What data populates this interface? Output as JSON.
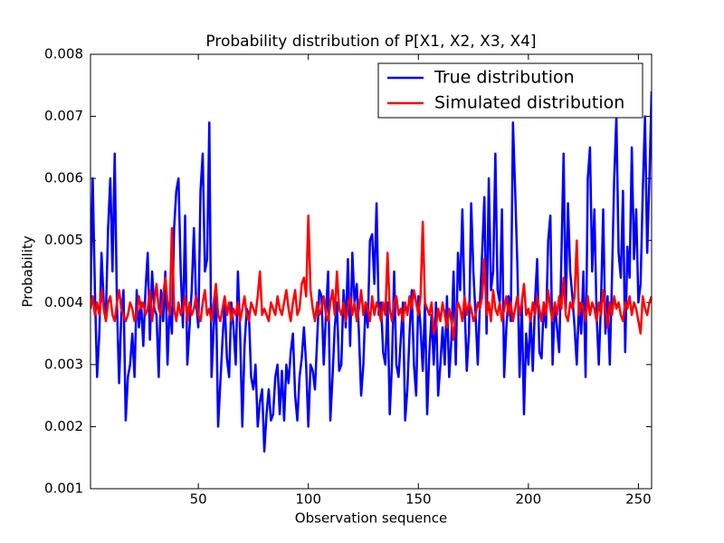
{
  "chart_data": {
    "type": "line",
    "title": "Probability distribution of P[X1, X2, X3, X4]",
    "xlabel": "Observation sequence",
    "ylabel": "Probability",
    "xlim": [
      1,
      256
    ],
    "xticks": [
      50,
      100,
      150,
      200,
      250
    ],
    "ylim": [
      0.001,
      0.008
    ],
    "yticks": [
      0.001,
      0.002,
      0.003,
      0.004,
      0.005,
      0.006,
      0.007,
      0.008
    ],
    "legend": "upper right",
    "x": [
      1,
      2,
      3,
      4,
      5,
      6,
      7,
      8,
      9,
      10,
      11,
      12,
      13,
      14,
      15,
      16,
      17,
      18,
      19,
      20,
      21,
      22,
      23,
      24,
      25,
      26,
      27,
      28,
      29,
      30,
      31,
      32,
      33,
      34,
      35,
      36,
      37,
      38,
      39,
      40,
      41,
      42,
      43,
      44,
      45,
      46,
      47,
      48,
      49,
      50,
      51,
      52,
      53,
      54,
      55,
      56,
      57,
      58,
      59,
      60,
      61,
      62,
      63,
      64,
      65,
      66,
      67,
      68,
      69,
      70,
      71,
      72,
      73,
      74,
      75,
      76,
      77,
      78,
      79,
      80,
      81,
      82,
      83,
      84,
      85,
      86,
      87,
      88,
      89,
      90,
      91,
      92,
      93,
      94,
      95,
      96,
      97,
      98,
      99,
      100,
      101,
      102,
      103,
      104,
      105,
      106,
      107,
      108,
      109,
      110,
      111,
      112,
      113,
      114,
      115,
      116,
      117,
      118,
      119,
      120,
      121,
      122,
      123,
      124,
      125,
      126,
      127,
      128,
      129,
      130,
      131,
      132,
      133,
      134,
      135,
      136,
      137,
      138,
      139,
      140,
      141,
      142,
      143,
      144,
      145,
      146,
      147,
      148,
      149,
      150,
      151,
      152,
      153,
      154,
      155,
      156,
      157,
      158,
      159,
      160,
      161,
      162,
      163,
      164,
      165,
      166,
      167,
      168,
      169,
      170,
      171,
      172,
      173,
      174,
      175,
      176,
      177,
      178,
      179,
      180,
      181,
      182,
      183,
      184,
      185,
      186,
      187,
      188,
      189,
      190,
      191,
      192,
      193,
      194,
      195,
      196,
      197,
      198,
      199,
      200,
      201,
      202,
      203,
      204,
      205,
      206,
      207,
      208,
      209,
      210,
      211,
      212,
      213,
      214,
      215,
      216,
      217,
      218,
      219,
      220,
      221,
      222,
      223,
      224,
      225,
      226,
      227,
      228,
      229,
      230,
      231,
      232,
      233,
      234,
      235,
      236,
      237,
      238,
      239,
      240,
      241,
      242,
      243,
      244,
      245,
      246,
      247,
      248,
      249,
      250,
      251,
      252,
      253,
      254,
      255,
      256
    ],
    "series": [
      {
        "name": "True distribution",
        "color": "#0000ff",
        "values": [
          0.004,
          0.006,
          0.0042,
          0.0028,
          0.0035,
          0.0048,
          0.004,
          0.0038,
          0.0052,
          0.006,
          0.0045,
          0.0064,
          0.004,
          0.0027,
          0.0038,
          0.0042,
          0.0021,
          0.0028,
          0.003,
          0.0035,
          0.0028,
          0.0042,
          0.0036,
          0.004,
          0.0033,
          0.0042,
          0.0048,
          0.0034,
          0.0045,
          0.0039,
          0.0038,
          0.0028,
          0.0042,
          0.0037,
          0.0045,
          0.003,
          0.004,
          0.0035,
          0.0052,
          0.0058,
          0.006,
          0.0045,
          0.0036,
          0.0054,
          0.003,
          0.0036,
          0.0042,
          0.0052,
          0.004,
          0.0036,
          0.0058,
          0.0064,
          0.0045,
          0.0047,
          0.0069,
          0.0028,
          0.0036,
          0.0042,
          0.002,
          0.0027,
          0.0034,
          0.004,
          0.0031,
          0.0028,
          0.004,
          0.0036,
          0.003,
          0.0045,
          0.0035,
          0.002,
          0.0033,
          0.0039,
          0.0038,
          0.0028,
          0.0026,
          0.003,
          0.002,
          0.0024,
          0.0026,
          0.0016,
          0.0022,
          0.0026,
          0.0021,
          0.0022,
          0.0028,
          0.003,
          0.0022,
          0.0029,
          0.0021,
          0.003,
          0.0027,
          0.0032,
          0.0035,
          0.0025,
          0.0021,
          0.0028,
          0.0031,
          0.0036,
          0.003,
          0.002,
          0.003,
          0.0029,
          0.0026,
          0.0034,
          0.0042,
          0.0041,
          0.003,
          0.0038,
          0.0045,
          0.0021,
          0.0028,
          0.0036,
          0.004,
          0.0029,
          0.003,
          0.0042,
          0.0036,
          0.0047,
          0.0033,
          0.0048,
          0.004,
          0.0043,
          0.0035,
          0.0025,
          0.003,
          0.004,
          0.0036,
          0.005,
          0.0051,
          0.0043,
          0.0056,
          0.0038,
          0.004,
          0.0032,
          0.003,
          0.004,
          0.0022,
          0.003,
          0.0045,
          0.003,
          0.0028,
          0.0034,
          0.004,
          0.0021,
          0.0026,
          0.0035,
          0.0042,
          0.003,
          0.0025,
          0.0041,
          0.0036,
          0.0029,
          0.004,
          0.0022,
          0.0032,
          0.0038,
          0.003,
          0.004,
          0.0025,
          0.003,
          0.0036,
          0.003,
          0.0041,
          0.0028,
          0.0034,
          0.0045,
          0.003,
          0.0048,
          0.0042,
          0.0055,
          0.004,
          0.0029,
          0.0035,
          0.0056,
          0.0045,
          0.0038,
          0.003,
          0.004,
          0.0048,
          0.0057,
          0.0035,
          0.006,
          0.0042,
          0.0045,
          0.0064,
          0.0042,
          0.004,
          0.0055,
          0.0028,
          0.0036,
          0.0041,
          0.0037,
          0.0069,
          0.0058,
          0.0046,
          0.0028,
          0.004,
          0.0022,
          0.0035,
          0.003,
          0.0038,
          0.0029,
          0.004,
          0.0047,
          0.0032,
          0.0031,
          0.004,
          0.0036,
          0.005,
          0.0054,
          0.003,
          0.004,
          0.0036,
          0.0032,
          0.0047,
          0.0064,
          0.0039,
          0.0056,
          0.0045,
          0.0041,
          0.0036,
          0.003,
          0.004,
          0.0035,
          0.0045,
          0.0028,
          0.006,
          0.0065,
          0.0045,
          0.0055,
          0.0038,
          0.003,
          0.004,
          0.0055,
          0.0035,
          0.0041,
          0.003,
          0.0044,
          0.006,
          0.007,
          0.0048,
          0.0044,
          0.0058,
          0.0032,
          0.0049,
          0.0044,
          0.0065,
          0.0047,
          0.0055,
          0.004,
          0.0043,
          0.0058,
          0.007,
          0.0048,
          0.006,
          0.0074
        ]
      },
      {
        "name": "Simulated distribution",
        "color": "#ff0000",
        "values": [
          0.0039,
          0.0041,
          0.0038,
          0.004,
          0.0038,
          0.0042,
          0.0039,
          0.0037,
          0.004,
          0.0041,
          0.0038,
          0.0037,
          0.004,
          0.0042,
          0.0039,
          0.0038,
          0.0037,
          0.0038,
          0.004,
          0.0039,
          0.0037,
          0.0038,
          0.0041,
          0.0039,
          0.004,
          0.0038,
          0.0039,
          0.0042,
          0.0037,
          0.004,
          0.0043,
          0.0039,
          0.0038,
          0.0041,
          0.0044,
          0.004,
          0.0038,
          0.0052,
          0.0039,
          0.0037,
          0.004,
          0.0038,
          0.0039,
          0.0041,
          0.0037,
          0.004,
          0.0038,
          0.0039,
          0.0041,
          0.0038,
          0.0037,
          0.004,
          0.0042,
          0.0038,
          0.0039,
          0.0037,
          0.004,
          0.0043,
          0.0038,
          0.0037,
          0.0039,
          0.0041,
          0.0038,
          0.004,
          0.0037,
          0.0039,
          0.0038,
          0.004,
          0.0037,
          0.0039,
          0.0041,
          0.0038,
          0.0037,
          0.004,
          0.0039,
          0.0038,
          0.0041,
          0.0045,
          0.0038,
          0.0039,
          0.0038,
          0.0037,
          0.004,
          0.0039,
          0.0038,
          0.0041,
          0.0039,
          0.0038,
          0.004,
          0.0042,
          0.0039,
          0.0037,
          0.004,
          0.0042,
          0.0038,
          0.0039,
          0.0043,
          0.0044,
          0.0041,
          0.0054,
          0.0042,
          0.0039,
          0.0037,
          0.004,
          0.0038,
          0.0039,
          0.0041,
          0.0038,
          0.0037,
          0.004,
          0.0042,
          0.0038,
          0.0045,
          0.0039,
          0.0038,
          0.004,
          0.0037,
          0.0039,
          0.0041,
          0.0038,
          0.004,
          0.0037,
          0.0039,
          0.0042,
          0.0038,
          0.004,
          0.0039,
          0.0037,
          0.0041,
          0.0038,
          0.004,
          0.0039,
          0.0037,
          0.004,
          0.0038,
          0.0048,
          0.0039,
          0.0037,
          0.004,
          0.0041,
          0.0038,
          0.0039,
          0.0037,
          0.004,
          0.0038,
          0.0041,
          0.0039,
          0.0042,
          0.004,
          0.0038,
          0.0041,
          0.0053,
          0.004,
          0.0039,
          0.0038,
          0.004,
          0.0035,
          0.0036,
          0.0039,
          0.0037,
          0.004,
          0.0038,
          0.0036,
          0.0039,
          0.0037,
          0.0034,
          0.0038,
          0.004,
          0.0039,
          0.0037,
          0.0041,
          0.0038,
          0.004,
          0.0039,
          0.0037,
          0.0038,
          0.004,
          0.0039,
          0.0041,
          0.0047,
          0.0038,
          0.004,
          0.0037,
          0.0042,
          0.0039,
          0.0038,
          0.004,
          0.0037,
          0.0039,
          0.0041,
          0.0038,
          0.004,
          0.0037,
          0.0039,
          0.0041,
          0.0038,
          0.004,
          0.0043,
          0.0038,
          0.0039,
          0.0037,
          0.004,
          0.0038,
          0.0041,
          0.0039,
          0.0037,
          0.004,
          0.0038,
          0.0042,
          0.0039,
          0.0037,
          0.004,
          0.0038,
          0.0041,
          0.0039,
          0.0044,
          0.0038,
          0.0037,
          0.004,
          0.0039,
          0.0041,
          0.005,
          0.0038,
          0.004,
          0.0039,
          0.0037,
          0.0041,
          0.0038,
          0.004,
          0.0039,
          0.0037,
          0.004,
          0.0038,
          0.0042,
          0.0039,
          0.0036,
          0.004,
          0.0038,
          0.0041,
          0.0039,
          0.004,
          0.0038,
          0.0037,
          0.004,
          0.0039,
          0.0041,
          0.0038,
          0.004,
          0.0039,
          0.0037,
          0.0035,
          0.0041,
          0.0039,
          0.0038,
          0.004,
          0.0041
        ]
      }
    ]
  }
}
